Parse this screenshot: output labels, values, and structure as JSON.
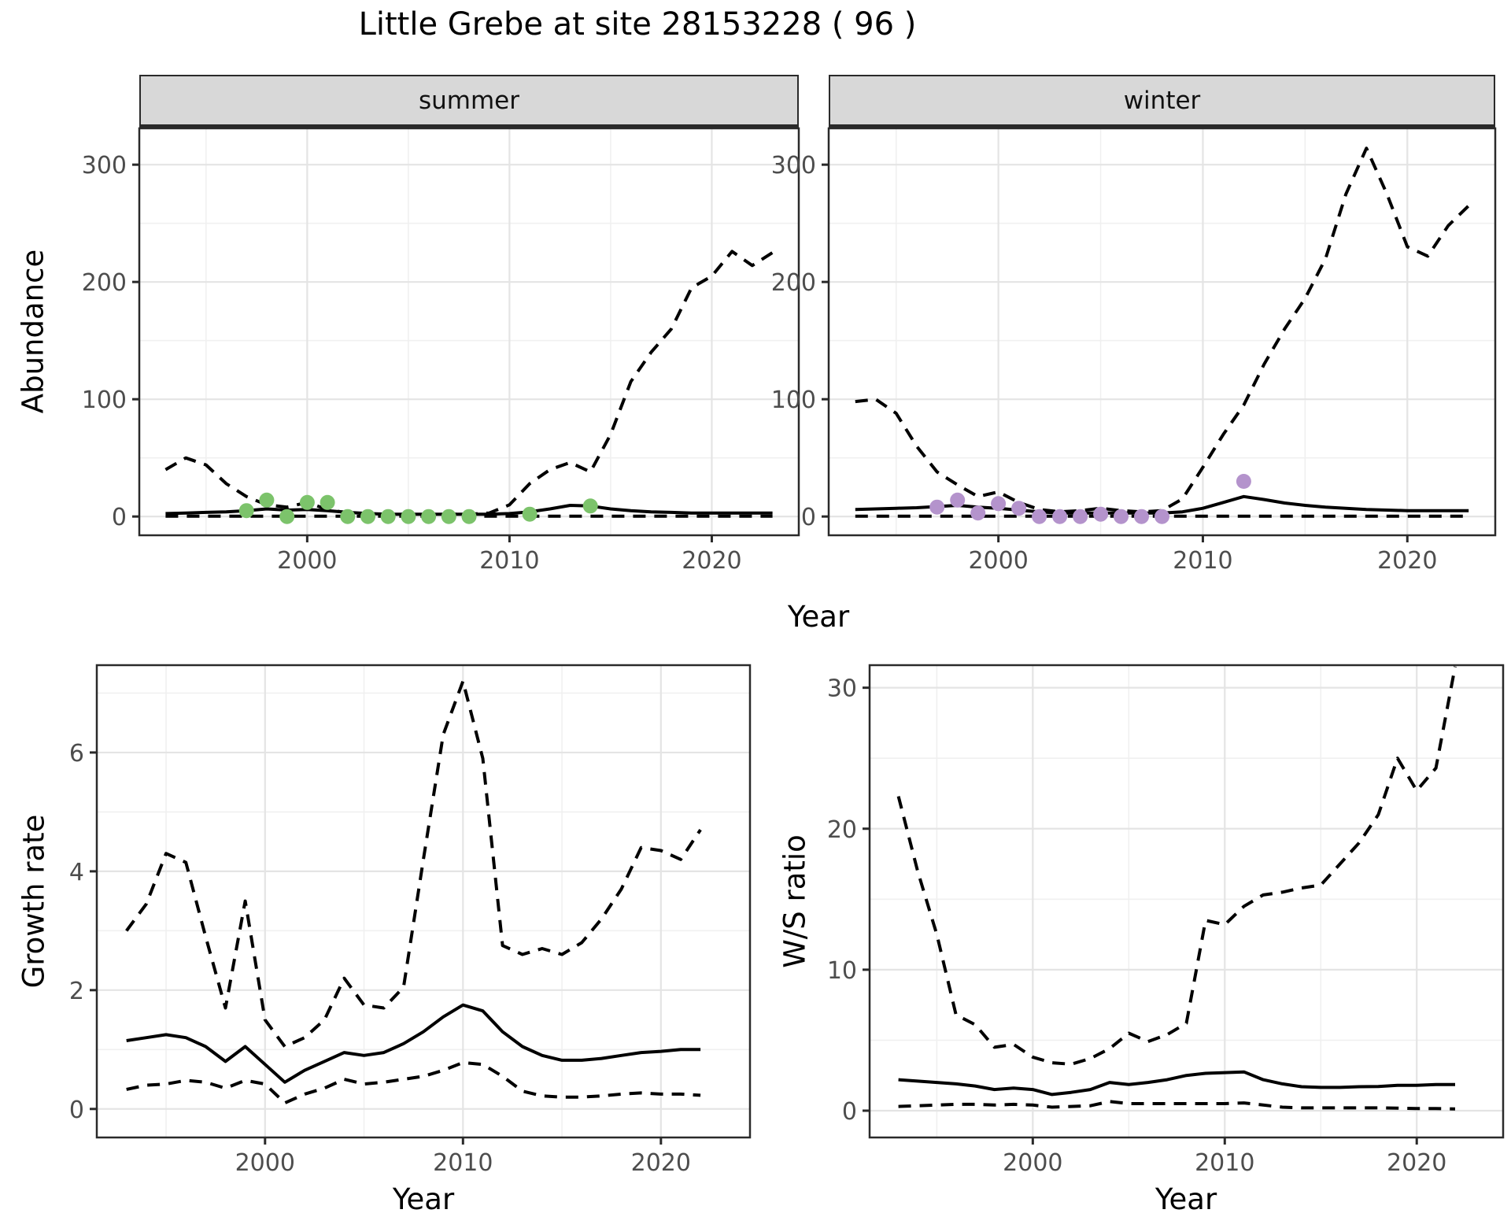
{
  "title": "Little Grebe at site 28153228 ( 96 )",
  "colors": {
    "summer_points": "#7cc36b",
    "winter_points": "#b493cc",
    "line": "#000000",
    "strip_background": "#d8d8d8",
    "panel_border": "#2a2a2a",
    "grid_major": "#e4e4e4",
    "grid_minor": "#f0f0f0",
    "axis_tick_text": "#4d4d4d"
  },
  "chart_data": [
    {
      "id": "abundance-summer",
      "type": "line",
      "facet_label": "summer",
      "xlabel": "Year",
      "ylabel": "Abundance",
      "xlim": [
        1991.7,
        2024.3
      ],
      "ylim": [
        -16,
        331
      ],
      "xticks": [
        2000,
        2010,
        2020
      ],
      "yticks": [
        0,
        100,
        200,
        300
      ],
      "grid": true,
      "legend": "none",
      "x": [
        1993,
        1994,
        1995,
        1996,
        1997,
        1998,
        1999,
        2000,
        2001,
        2002,
        2003,
        2004,
        2005,
        2006,
        2007,
        2008,
        2009,
        2010,
        2011,
        2012,
        2013,
        2014,
        2015,
        2016,
        2017,
        2018,
        2019,
        2020,
        2021,
        2022,
        2023
      ],
      "series": [
        {
          "name": "mean",
          "style": "solid",
          "values": [
            2.5,
            3,
            3.5,
            4,
            5,
            6.5,
            5.5,
            6,
            5,
            3.5,
            2.5,
            2,
            2,
            2,
            2,
            2,
            2,
            2.5,
            4,
            6.5,
            9.5,
            9,
            6.5,
            5,
            4,
            3.5,
            3,
            3,
            3,
            3,
            3
          ]
        },
        {
          "name": "upper_ci",
          "style": "dashed",
          "values": [
            40,
            50,
            44,
            28,
            17,
            10,
            8,
            12,
            6,
            3,
            2,
            2,
            2,
            2,
            2,
            2,
            3,
            10,
            28,
            40,
            46,
            38,
            70,
            115,
            140,
            160,
            195,
            205,
            226,
            214,
            225
          ]
        },
        {
          "name": "lower_ci",
          "style": "dashed",
          "values": [
            0.3,
            0.3,
            0.3,
            0.3,
            0.3,
            0.3,
            0.3,
            0.3,
            0.3,
            0.3,
            0.3,
            0.3,
            0.3,
            0.3,
            0.3,
            0.3,
            0.3,
            0.3,
            0.3,
            0.3,
            0.3,
            0.3,
            0.3,
            0.3,
            0.3,
            0.3,
            0.3,
            0.3,
            0.3,
            0.3,
            0.3
          ]
        }
      ],
      "points": {
        "name": "observed-counts",
        "color": "#7cc36b",
        "x": [
          1997,
          1998,
          1999,
          2000,
          2001,
          2002,
          2003,
          2004,
          2005,
          2006,
          2007,
          2008,
          2011,
          2014
        ],
        "y": [
          5,
          14,
          0,
          12,
          12,
          0,
          0,
          0,
          0,
          0,
          0,
          0,
          2,
          9
        ]
      }
    },
    {
      "id": "abundance-winter",
      "type": "line",
      "facet_label": "winter",
      "xlabel": "Year",
      "ylabel": "Abundance",
      "xlim": [
        1991.7,
        2024.3
      ],
      "ylim": [
        -16,
        331
      ],
      "xticks": [
        2000,
        2010,
        2020
      ],
      "yticks": [
        0,
        100,
        200,
        300
      ],
      "grid": true,
      "legend": "none",
      "x": [
        1993,
        1994,
        1995,
        1996,
        1997,
        1998,
        1999,
        2000,
        2001,
        2002,
        2003,
        2004,
        2005,
        2006,
        2007,
        2008,
        2009,
        2010,
        2011,
        2012,
        2013,
        2014,
        2015,
        2016,
        2017,
        2018,
        2019,
        2020,
        2021,
        2022,
        2023
      ],
      "series": [
        {
          "name": "mean",
          "style": "solid",
          "values": [
            6,
            6.5,
            7,
            7.5,
            8.5,
            9.5,
            8,
            7,
            5.5,
            4,
            3,
            3,
            3,
            3,
            3,
            3,
            4,
            7,
            12,
            17,
            14.5,
            11.5,
            9.5,
            8,
            7,
            6,
            5.5,
            5,
            5,
            5,
            5
          ]
        },
        {
          "name": "upper_ci",
          "style": "dashed",
          "values": [
            98,
            100,
            88,
            60,
            38,
            27,
            17,
            21,
            12,
            6,
            4,
            5,
            7,
            5,
            4,
            5,
            15,
            42,
            70,
            95,
            130,
            160,
            186,
            220,
            275,
            314,
            275,
            230,
            222,
            248,
            265
          ]
        },
        {
          "name": "lower_ci",
          "style": "dashed",
          "values": [
            0.3,
            0.3,
            0.3,
            0.3,
            0.3,
            0.3,
            0.3,
            0.3,
            0.3,
            0.3,
            0.3,
            0.3,
            0.3,
            0.3,
            0.3,
            0.3,
            0.3,
            0.3,
            0.3,
            0.3,
            0.3,
            0.3,
            0.3,
            0.3,
            0.3,
            0.3,
            0.3,
            0.3,
            0.3,
            0.3,
            0.3
          ]
        }
      ],
      "points": {
        "name": "observed-counts",
        "color": "#b493cc",
        "x": [
          1997,
          1998,
          1999,
          2000,
          2001,
          2002,
          2003,
          2004,
          2005,
          2006,
          2007,
          2008,
          2012
        ],
        "y": [
          8,
          14,
          3,
          11,
          7,
          0,
          0,
          0,
          2,
          0,
          0,
          0,
          30
        ]
      }
    },
    {
      "id": "growth-rate",
      "type": "line",
      "facet_label": "",
      "xlabel": "Year",
      "ylabel": "Growth rate",
      "xlim": [
        1991.5,
        2024.5
      ],
      "ylim": [
        -0.48,
        7.47
      ],
      "xticks": [
        2000,
        2010,
        2020
      ],
      "yticks": [
        0,
        2,
        4,
        6
      ],
      "grid": true,
      "legend": "none",
      "x": [
        1993,
        1994,
        1995,
        1996,
        1997,
        1998,
        1999,
        2000,
        2001,
        2002,
        2003,
        2004,
        2005,
        2006,
        2007,
        2008,
        2009,
        2010,
        2011,
        2012,
        2013,
        2014,
        2015,
        2016,
        2017,
        2018,
        2019,
        2020,
        2021,
        2022
      ],
      "series": [
        {
          "name": "mean",
          "style": "solid",
          "values": [
            1.15,
            1.2,
            1.25,
            1.2,
            1.05,
            0.8,
            1.05,
            0.75,
            0.45,
            0.65,
            0.8,
            0.95,
            0.9,
            0.95,
            1.1,
            1.3,
            1.55,
            1.75,
            1.65,
            1.3,
            1.05,
            0.9,
            0.82,
            0.82,
            0.85,
            0.9,
            0.95,
            0.97,
            1.0,
            1.0
          ]
        },
        {
          "name": "upper_ci",
          "style": "dashed",
          "values": [
            3.0,
            3.45,
            4.3,
            4.15,
            2.9,
            1.7,
            3.5,
            1.5,
            1.05,
            1.2,
            1.5,
            2.2,
            1.75,
            1.7,
            2.05,
            4.2,
            6.3,
            7.2,
            5.9,
            2.75,
            2.6,
            2.7,
            2.6,
            2.8,
            3.2,
            3.7,
            4.4,
            4.35,
            4.2,
            4.7
          ]
        },
        {
          "name": "lower_ci",
          "style": "dashed",
          "values": [
            0.33,
            0.4,
            0.42,
            0.48,
            0.45,
            0.35,
            0.48,
            0.42,
            0.1,
            0.25,
            0.35,
            0.5,
            0.42,
            0.45,
            0.5,
            0.55,
            0.65,
            0.78,
            0.75,
            0.55,
            0.3,
            0.22,
            0.2,
            0.2,
            0.22,
            0.25,
            0.27,
            0.25,
            0.25,
            0.23
          ]
        }
      ]
    },
    {
      "id": "ws-ratio",
      "type": "line",
      "facet_label": "",
      "xlabel": "Year",
      "ylabel": "W/S ratio",
      "xlim": [
        1991.5,
        2024.5
      ],
      "ylim": [
        -1.9,
        31.6
      ],
      "xticks": [
        2000,
        2010,
        2020
      ],
      "yticks": [
        0,
        10,
        20,
        30
      ],
      "grid": true,
      "legend": "none",
      "x": [
        1993,
        1994,
        1995,
        1996,
        1997,
        1998,
        1999,
        2000,
        2001,
        2002,
        2003,
        2004,
        2005,
        2006,
        2007,
        2008,
        2009,
        2010,
        2011,
        2012,
        2013,
        2014,
        2015,
        2016,
        2017,
        2018,
        2019,
        2020,
        2021,
        2022
      ],
      "series": [
        {
          "name": "mean",
          "style": "solid",
          "values": [
            2.2,
            2.1,
            2.0,
            1.9,
            1.75,
            1.5,
            1.6,
            1.5,
            1.15,
            1.3,
            1.5,
            2.0,
            1.85,
            2.0,
            2.2,
            2.5,
            2.65,
            2.7,
            2.75,
            2.2,
            1.9,
            1.7,
            1.65,
            1.65,
            1.7,
            1.72,
            1.8,
            1.8,
            1.85,
            1.85
          ]
        },
        {
          "name": "upper_ci",
          "style": "dashed",
          "values": [
            22.3,
            17.0,
            12.5,
            6.8,
            6.1,
            4.5,
            4.7,
            3.8,
            3.4,
            3.3,
            3.7,
            4.4,
            5.5,
            4.9,
            5.4,
            6.2,
            13.5,
            13.2,
            14.5,
            15.3,
            15.5,
            15.8,
            16.0,
            17.5,
            19.0,
            21.0,
            25.0,
            22.7,
            24.3,
            31.5
          ]
        },
        {
          "name": "lower_ci",
          "style": "dashed",
          "values": [
            0.3,
            0.35,
            0.4,
            0.45,
            0.45,
            0.4,
            0.45,
            0.4,
            0.25,
            0.3,
            0.35,
            0.65,
            0.5,
            0.5,
            0.5,
            0.5,
            0.5,
            0.5,
            0.55,
            0.4,
            0.25,
            0.2,
            0.2,
            0.2,
            0.2,
            0.2,
            0.18,
            0.15,
            0.15,
            0.12
          ]
        }
      ]
    }
  ]
}
